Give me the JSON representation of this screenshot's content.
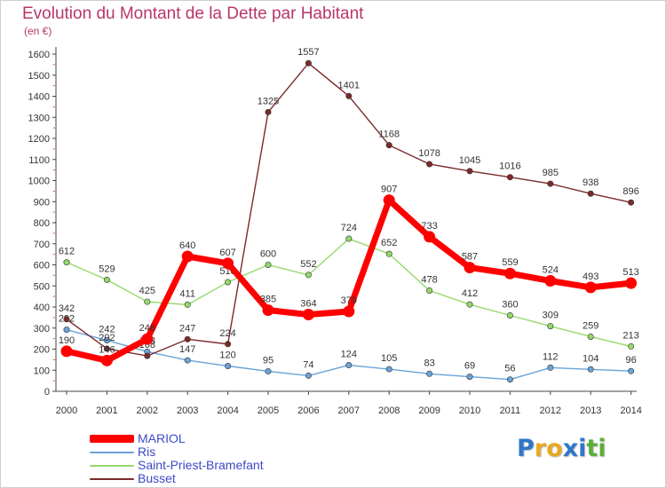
{
  "header": {
    "title": "Evolution du Montant de la Dette par Habitant",
    "subtitle": "(en €)"
  },
  "brand": {
    "logo_text": "Proxiti",
    "colors": [
      "#2f77c8",
      "#e8a825",
      "#e8a825",
      "#2f77c8",
      "#2f77c8",
      "#5cae3c",
      "#5cae3c"
    ]
  },
  "chart_data": {
    "type": "line",
    "title": "Evolution du Montant de la Dette par Habitant",
    "subtitle": "(en €)",
    "xlabel": "",
    "ylabel": "",
    "ylim": [
      0,
      1600
    ],
    "y_ticks": [
      0,
      100,
      200,
      300,
      400,
      500,
      600,
      700,
      800,
      900,
      1000,
      1100,
      1200,
      1300,
      1400,
      1500,
      1600
    ],
    "grid": false,
    "legend_position": "bottom-left",
    "x": [
      "2000",
      "2001",
      "2002",
      "2003",
      "2004",
      "2005",
      "2006",
      "2007",
      "2008",
      "2009",
      "2010",
      "2011",
      "2012",
      "2013",
      "2014"
    ],
    "series": [
      {
        "name": "MARIOL",
        "color": "#ff0000",
        "emphasis": true,
        "values": [
          190,
          146,
          248,
          640,
          607,
          385,
          364,
          379,
          907,
          733,
          587,
          559,
          524,
          493,
          513
        ]
      },
      {
        "name": "Ris",
        "color": "#6aa3d8",
        "emphasis": false,
        "values": [
          292,
          242,
          188,
          147,
          120,
          95,
          74,
          124,
          105,
          83,
          69,
          56,
          112,
          104,
          96
        ]
      },
      {
        "name": "Saint-Priest-Bramefant",
        "color": "#94d96a",
        "emphasis": false,
        "values": [
          612,
          529,
          425,
          411,
          518,
          600,
          552,
          724,
          652,
          478,
          412,
          360,
          309,
          259,
          213
        ]
      },
      {
        "name": "Busset",
        "color": "#7b2a2a",
        "emphasis": false,
        "values": [
          342,
          202,
          168,
          247,
          224,
          1325,
          1557,
          1401,
          1168,
          1078,
          1045,
          1016,
          985,
          938,
          896
        ]
      }
    ]
  }
}
